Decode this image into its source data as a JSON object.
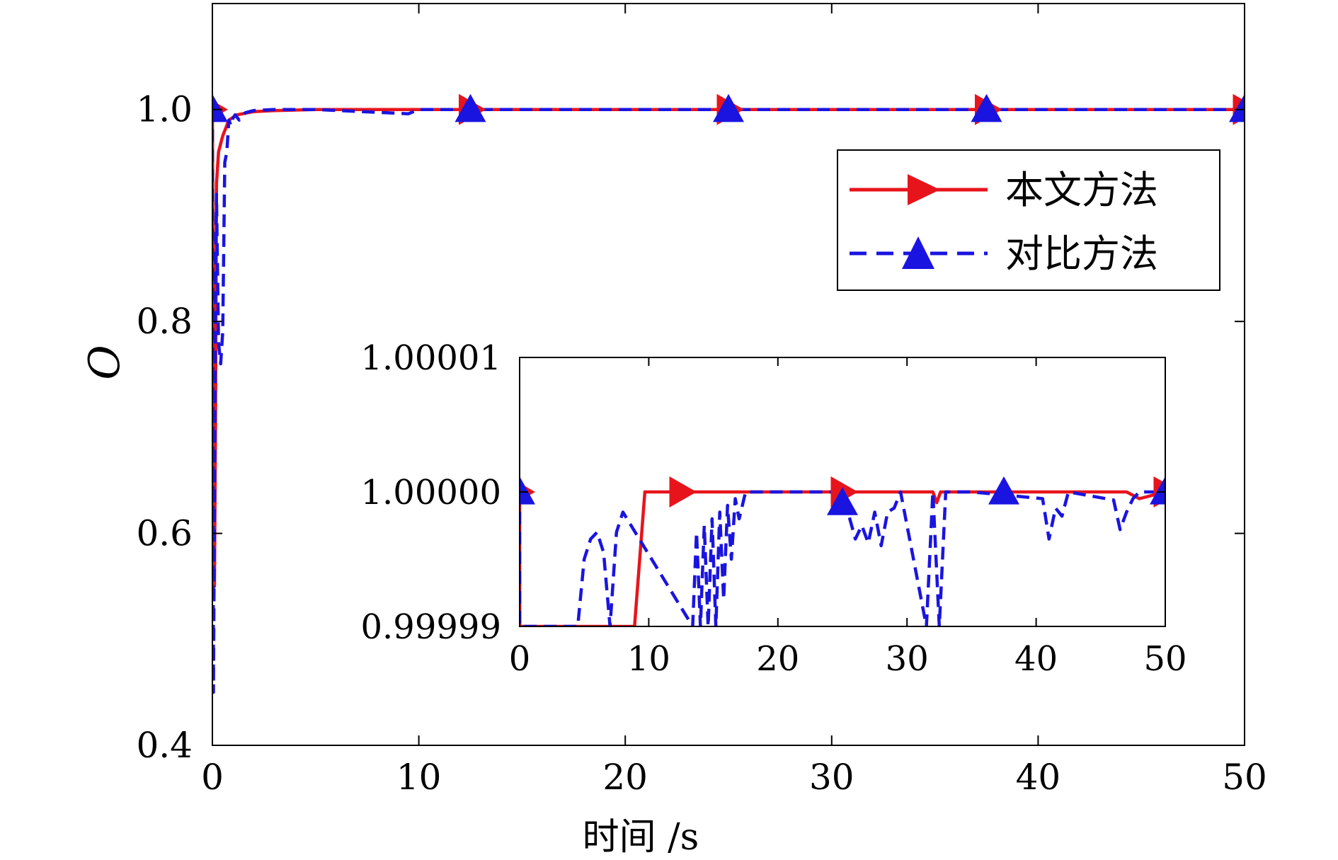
{
  "chart_data": [
    {
      "type": "line",
      "xlabel": "时间 /s",
      "ylabel": "O",
      "xlim": [
        0,
        50
      ],
      "ylim": [
        0.4,
        1.1
      ],
      "xticks": [
        "0",
        "10",
        "20",
        "30",
        "40",
        "50"
      ],
      "yticks": [
        "0.4",
        "0.6",
        "0.8",
        "1.0"
      ],
      "grid": false,
      "legend": "top-right",
      "series": [
        {
          "name": "本文方法",
          "color": "#e8141c",
          "style": "solid",
          "marker": "triangle-right",
          "x": [
            0,
            0.05,
            0.1,
            0.15,
            0.2,
            0.3,
            0.5,
            0.8,
            1.2,
            2,
            3,
            5,
            10,
            20,
            30,
            40,
            50
          ],
          "y": [
            1.0,
            0.75,
            0.55,
            0.7,
            0.93,
            0.96,
            0.975,
            0.99,
            0.995,
            0.998,
            0.999,
            1.0,
            1.0,
            1.0,
            1.0,
            1.0,
            1.0
          ],
          "markers_x": [
            0,
            12.5,
            25,
            37.5,
            50
          ],
          "markers_y": [
            1.0,
            1.0,
            1.0,
            1.0,
            1.0
          ]
        },
        {
          "name": "对比方法",
          "color": "#1a14e0",
          "style": "dashed",
          "marker": "triangle-up",
          "x": [
            0,
            0.05,
            0.1,
            0.15,
            0.2,
            0.3,
            0.4,
            0.5,
            0.6,
            0.7,
            0.8,
            0.9,
            1.0,
            1.1,
            1.3,
            1.6,
            2,
            3,
            5,
            9.5,
            10,
            10.5,
            50
          ],
          "y": [
            1.0,
            0.45,
            0.62,
            0.85,
            0.92,
            0.78,
            0.76,
            0.79,
            0.95,
            0.96,
            0.99,
            0.985,
            0.992,
            0.995,
            0.99,
            0.997,
            0.999,
            1.0,
            1.0,
            0.996,
            1.0,
            1.0,
            1.0
          ],
          "markers_x": [
            0,
            12.5,
            25,
            37.5,
            50
          ],
          "markers_y": [
            1.0,
            1.0,
            1.0,
            1.0,
            1.0
          ]
        }
      ]
    },
    {
      "type": "line",
      "role": "inset",
      "xlim": [
        0,
        50
      ],
      "ylim": [
        0.99999,
        1.00001
      ],
      "xticks": [
        "0",
        "10",
        "20",
        "30",
        "40",
        "50"
      ],
      "yticks": [
        "0.99999",
        "1.00000",
        "1.00001"
      ],
      "series": [
        {
          "name": "本文方法",
          "color": "#e8141c",
          "style": "solid",
          "marker": "triangle-right",
          "x": [
            0,
            0.01,
            8.9,
            9.7,
            10.5,
            15,
            18,
            25,
            32,
            32.3,
            32.6,
            40,
            47,
            48,
            50
          ],
          "y": [
            1.0,
            0.99999,
            0.99999,
            1.0,
            1.0,
            1.0,
            1.0,
            1.0,
            1.0,
            0.9999992,
            1.0,
            1.0,
            1.0,
            0.9999995,
            1.0
          ],
          "markers_x": [
            0,
            12.5,
            25,
            50
          ],
          "markers_y": [
            1.0,
            1.0,
            1.0,
            1.0
          ]
        },
        {
          "name": "对比方法",
          "color": "#1a14e0",
          "style": "dashed",
          "marker": "triangle-up",
          "x": [
            0,
            0.01,
            4.5,
            5,
            5.5,
            6,
            6.5,
            7,
            7.5,
            8,
            13.4,
            13.7,
            14,
            14.3,
            14.6,
            14.9,
            15.2,
            15.5,
            15.8,
            16.1,
            16.4,
            16.7,
            17,
            17.5,
            18,
            25,
            26,
            26.5,
            27,
            27.5,
            28,
            28.5,
            29,
            29.5,
            31.5,
            32,
            32.5,
            33,
            33.5,
            35,
            40.5,
            41,
            41.5,
            42,
            42.5,
            46,
            46.5,
            47,
            47.5,
            48,
            50
          ],
          "y": [
            1.0,
            0.99999,
            0.99999,
            0.999995,
            0.9999965,
            0.999997,
            0.9999955,
            0.99999,
            0.999997,
            0.9999985,
            0.99999,
            0.999997,
            0.99999,
            0.9999975,
            0.99999,
            0.999998,
            0.99999,
            0.9999985,
            0.999992,
            0.999999,
            0.999995,
            0.9999995,
            0.999998,
            1.0,
            1.0,
            1.0,
            0.9999965,
            0.9999975,
            0.9999962,
            0.9999985,
            0.999996,
            0.9999985,
            0.9999988,
            1.0,
            0.99999,
            1.0,
            0.99999,
            1.0,
            1.0,
            1.0,
            0.9999995,
            0.9999965,
            0.9999988,
            0.9999982,
            1.0,
            0.9999994,
            0.9999972,
            0.9999985,
            0.9999995,
            1.0,
            1.0
          ],
          "markers_x": [
            0,
            25,
            37.5,
            50
          ],
          "markers_y": [
            1.0,
            0.9999992,
            1.0,
            1.0
          ]
        }
      ]
    }
  ]
}
